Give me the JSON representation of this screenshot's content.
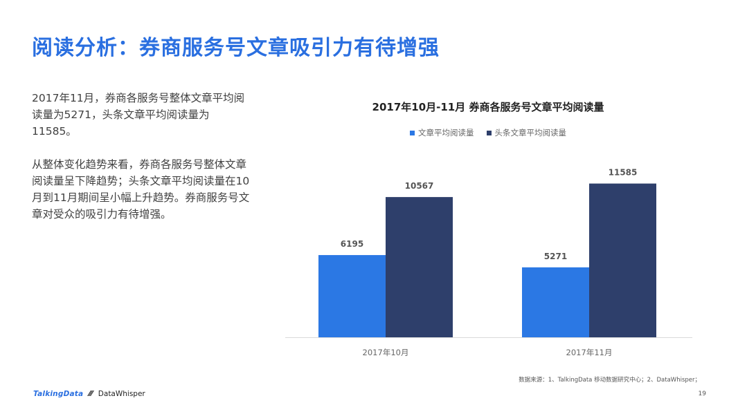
{
  "page": {
    "title": "阅读分析：券商服务号文章吸引力有待增强",
    "paragraphs": [
      "2017年11月，券商各服务号整体文章平均阅读量为5271，头条文章平均阅读量为11585。",
      "从整体变化趋势来看，券商各服务号整体文章阅读量呈下降趋势；头条文章平均阅读量在10月到11月期间呈小幅上升趋势。券商服务号文章对受众的吸引力有待增强。"
    ],
    "source_note": "数据来源：1、TalkingData 移动数据研究中心；2、DataWhisper；",
    "page_number": "19",
    "brands": {
      "talkingdata": "TalkingData",
      "datawhisper_icon": "⁄⁄⁄",
      "datawhisper": "DataWhisper"
    }
  },
  "chart_data": {
    "type": "bar",
    "title": "2017年10月-11月 券商各服务号文章平均阅读量",
    "categories": [
      "2017年10月",
      "2017年11月"
    ],
    "series": [
      {
        "name": "文章平均阅读量",
        "values": [
          6195,
          5271
        ],
        "color": "#2b78e4"
      },
      {
        "name": "头条文章平均阅读量",
        "values": [
          10567,
          11585
        ],
        "color": "#2e3f6b"
      }
    ],
    "ylim": [
      0,
      15000
    ],
    "grid": false,
    "legend_position": "top-center",
    "data_labels": true
  }
}
